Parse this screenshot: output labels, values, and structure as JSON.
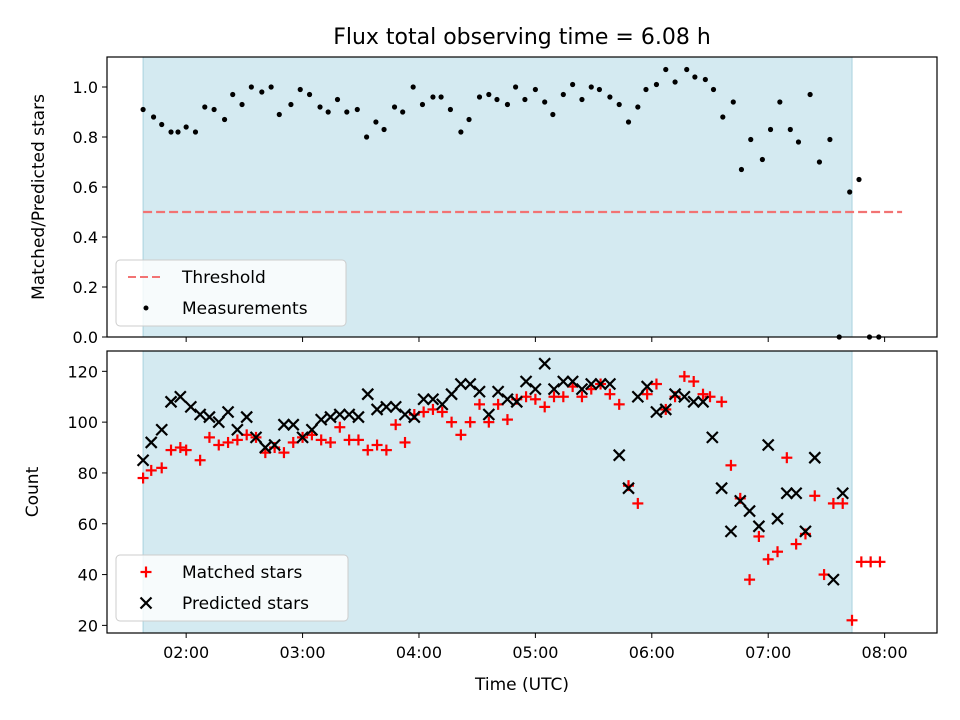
{
  "chart_data": [
    {
      "type": "scatter",
      "title": "Flux total observing time = 6.08 h",
      "xlabel": "",
      "ylabel": "Matched/Predicted stars",
      "ylim": [
        0,
        1.12
      ],
      "yticks": [
        0.0,
        0.2,
        0.4,
        0.6,
        0.8,
        1.0
      ],
      "ytick_labels": [
        "0.0",
        "0.2",
        "0.4",
        "0.6",
        "0.8",
        "1.0"
      ],
      "xlim_hours": [
        1.32,
        8.45
      ],
      "observing_window_hours": [
        1.63,
        7.72
      ],
      "shade_color": "#d4eaf1",
      "legend_position": "lower-left",
      "threshold": {
        "name": "Threshold",
        "value": 0.5,
        "x_range_hours": [
          1.63,
          8.15
        ],
        "color": "#f27373"
      },
      "series": [
        {
          "name": "Measurements",
          "color": "#000000",
          "points": [
            [
              1.63,
              0.91
            ],
            [
              1.72,
              0.88
            ],
            [
              1.79,
              0.85
            ],
            [
              1.87,
              0.82
            ],
            [
              1.93,
              0.82
            ],
            [
              2.0,
              0.84
            ],
            [
              2.08,
              0.82
            ],
            [
              2.16,
              0.92
            ],
            [
              2.24,
              0.91
            ],
            [
              2.33,
              0.87
            ],
            [
              2.4,
              0.97
            ],
            [
              2.48,
              0.93
            ],
            [
              2.56,
              1.0
            ],
            [
              2.65,
              0.98
            ],
            [
              2.73,
              1.0
            ],
            [
              2.8,
              0.89
            ],
            [
              2.9,
              0.93
            ],
            [
              2.98,
              0.99
            ],
            [
              3.06,
              0.97
            ],
            [
              3.15,
              0.92
            ],
            [
              3.22,
              0.9
            ],
            [
              3.3,
              0.95
            ],
            [
              3.38,
              0.9
            ],
            [
              3.47,
              0.91
            ],
            [
              3.55,
              0.8
            ],
            [
              3.63,
              0.86
            ],
            [
              3.7,
              0.83
            ],
            [
              3.79,
              0.92
            ],
            [
              3.86,
              0.9
            ],
            [
              3.95,
              1.0
            ],
            [
              4.03,
              0.93
            ],
            [
              4.12,
              0.96
            ],
            [
              4.19,
              0.96
            ],
            [
              4.27,
              0.91
            ],
            [
              4.36,
              0.82
            ],
            [
              4.43,
              0.87
            ],
            [
              4.52,
              0.96
            ],
            [
              4.6,
              0.97
            ],
            [
              4.67,
              0.95
            ],
            [
              4.76,
              0.93
            ],
            [
              4.83,
              1.0
            ],
            [
              4.91,
              0.95
            ],
            [
              5.0,
              0.99
            ],
            [
              5.08,
              0.94
            ],
            [
              5.15,
              0.89
            ],
            [
              5.24,
              0.97
            ],
            [
              5.32,
              1.01
            ],
            [
              5.4,
              0.95
            ],
            [
              5.48,
              1.0
            ],
            [
              5.55,
              0.99
            ],
            [
              5.64,
              0.96
            ],
            [
              5.72,
              0.93
            ],
            [
              5.8,
              0.86
            ],
            [
              5.88,
              0.92
            ],
            [
              5.95,
              0.99
            ],
            [
              6.04,
              1.01
            ],
            [
              6.12,
              1.07
            ],
            [
              6.2,
              1.02
            ],
            [
              6.3,
              1.07
            ],
            [
              6.37,
              1.04
            ],
            [
              6.46,
              1.03
            ],
            [
              6.53,
              0.99
            ],
            [
              6.61,
              0.88
            ],
            [
              6.7,
              0.94
            ],
            [
              6.77,
              0.67
            ],
            [
              6.85,
              0.79
            ],
            [
              6.95,
              0.71
            ],
            [
              7.02,
              0.83
            ],
            [
              7.1,
              0.94
            ],
            [
              7.19,
              0.83
            ],
            [
              7.26,
              0.78
            ],
            [
              7.36,
              0.97
            ],
            [
              7.44,
              0.7
            ],
            [
              7.53,
              0.79
            ],
            [
              7.61,
              0.0
            ],
            [
              7.7,
              0.58
            ],
            [
              7.78,
              0.63
            ],
            [
              7.87,
              0.0
            ],
            [
              7.95,
              0.0
            ]
          ]
        }
      ]
    },
    {
      "type": "scatter",
      "title": "",
      "xlabel": "Time (UTC)",
      "ylabel": "Count",
      "ylim": [
        17,
        128
      ],
      "yticks": [
        20,
        40,
        60,
        80,
        100,
        120
      ],
      "ytick_labels": [
        "20",
        "40",
        "60",
        "80",
        "100",
        "120"
      ],
      "xlim_hours": [
        1.32,
        8.45
      ],
      "xticks_hours": [
        2,
        3,
        4,
        5,
        6,
        7,
        8
      ],
      "xtick_labels": [
        "02:00",
        "03:00",
        "04:00",
        "05:00",
        "06:00",
        "07:00",
        "08:00"
      ],
      "observing_window_hours": [
        1.63,
        7.72
      ],
      "shade_color": "#d4eaf1",
      "legend_position": "lower-left",
      "series": [
        {
          "name": "Matched stars",
          "marker": "plus",
          "color": "#ff0000",
          "points": [
            [
              1.63,
              78
            ],
            [
              1.7,
              81
            ],
            [
              1.79,
              82
            ],
            [
              1.87,
              89
            ],
            [
              1.95,
              90
            ],
            [
              2.0,
              89
            ],
            [
              2.12,
              85
            ],
            [
              2.2,
              94
            ],
            [
              2.28,
              91
            ],
            [
              2.36,
              92
            ],
            [
              2.44,
              93
            ],
            [
              2.52,
              95
            ],
            [
              2.6,
              94
            ],
            [
              2.68,
              88
            ],
            [
              2.76,
              90
            ],
            [
              2.84,
              88
            ],
            [
              2.92,
              92
            ],
            [
              3.0,
              94
            ],
            [
              3.08,
              95
            ],
            [
              3.16,
              93
            ],
            [
              3.24,
              92
            ],
            [
              3.32,
              98
            ],
            [
              3.4,
              93
            ],
            [
              3.48,
              93
            ],
            [
              3.56,
              89
            ],
            [
              3.64,
              91
            ],
            [
              3.72,
              89
            ],
            [
              3.8,
              99
            ],
            [
              3.88,
              92
            ],
            [
              3.96,
              103
            ],
            [
              4.04,
              104
            ],
            [
              4.12,
              105
            ],
            [
              4.2,
              104
            ],
            [
              4.28,
              100
            ],
            [
              4.36,
              95
            ],
            [
              4.44,
              100
            ],
            [
              4.52,
              107
            ],
            [
              4.6,
              100
            ],
            [
              4.68,
              107
            ],
            [
              4.76,
              101
            ],
            [
              4.84,
              109
            ],
            [
              4.92,
              110
            ],
            [
              5.0,
              109
            ],
            [
              5.08,
              106
            ],
            [
              5.16,
              110
            ],
            [
              5.24,
              110
            ],
            [
              5.32,
              114
            ],
            [
              5.4,
              110
            ],
            [
              5.48,
              113
            ],
            [
              5.56,
              115
            ],
            [
              5.64,
              111
            ],
            [
              5.72,
              107
            ],
            [
              5.8,
              75
            ],
            [
              5.88,
              68
            ],
            [
              5.96,
              111
            ],
            [
              6.04,
              115
            ],
            [
              6.12,
              105
            ],
            [
              6.2,
              110
            ],
            [
              6.28,
              118
            ],
            [
              6.36,
              116
            ],
            [
              6.44,
              111
            ],
            [
              6.5,
              110
            ],
            [
              6.6,
              108
            ],
            [
              6.68,
              83
            ],
            [
              6.76,
              70
            ],
            [
              6.84,
              38
            ],
            [
              6.92,
              55
            ],
            [
              7.0,
              46
            ],
            [
              7.08,
              49
            ],
            [
              7.16,
              86
            ],
            [
              7.24,
              52
            ],
            [
              7.32,
              56
            ],
            [
              7.4,
              71
            ],
            [
              7.48,
              40
            ],
            [
              7.56,
              68
            ],
            [
              7.64,
              68
            ],
            [
              7.72,
              22
            ],
            [
              7.8,
              45
            ],
            [
              7.88,
              45
            ],
            [
              7.96,
              45
            ]
          ]
        },
        {
          "name": "Predicted stars",
          "marker": "x",
          "color": "#000000",
          "points": [
            [
              1.63,
              85
            ],
            [
              1.7,
              92
            ],
            [
              1.79,
              97
            ],
            [
              1.87,
              108
            ],
            [
              1.95,
              110
            ],
            [
              2.04,
              106
            ],
            [
              2.12,
              103
            ],
            [
              2.2,
              102
            ],
            [
              2.28,
              100
            ],
            [
              2.36,
              104
            ],
            [
              2.44,
              97
            ],
            [
              2.52,
              102
            ],
            [
              2.6,
              94
            ],
            [
              2.68,
              90
            ],
            [
              2.76,
              91
            ],
            [
              2.84,
              99
            ],
            [
              2.92,
              99
            ],
            [
              3.0,
              94
            ],
            [
              3.08,
              97
            ],
            [
              3.16,
              101
            ],
            [
              3.24,
              102
            ],
            [
              3.32,
              103
            ],
            [
              3.4,
              103
            ],
            [
              3.48,
              102
            ],
            [
              3.56,
              111
            ],
            [
              3.64,
              105
            ],
            [
              3.72,
              106
            ],
            [
              3.8,
              106
            ],
            [
              3.88,
              103
            ],
            [
              3.96,
              102
            ],
            [
              4.04,
              109
            ],
            [
              4.12,
              109
            ],
            [
              4.2,
              107
            ],
            [
              4.28,
              111
            ],
            [
              4.36,
              115
            ],
            [
              4.44,
              115
            ],
            [
              4.52,
              112
            ],
            [
              4.6,
              103
            ],
            [
              4.68,
              112
            ],
            [
              4.76,
              109
            ],
            [
              4.84,
              108
            ],
            [
              4.92,
              116
            ],
            [
              5.0,
              113
            ],
            [
              5.08,
              123
            ],
            [
              5.16,
              113
            ],
            [
              5.24,
              116
            ],
            [
              5.32,
              116
            ],
            [
              5.4,
              113
            ],
            [
              5.48,
              115
            ],
            [
              5.56,
              115
            ],
            [
              5.64,
              115
            ],
            [
              5.72,
              87
            ],
            [
              5.8,
              74
            ],
            [
              5.88,
              110
            ],
            [
              5.96,
              114
            ],
            [
              6.04,
              104
            ],
            [
              6.12,
              105
            ],
            [
              6.2,
              111
            ],
            [
              6.28,
              110
            ],
            [
              6.36,
              108
            ],
            [
              6.44,
              108
            ],
            [
              6.52,
              94
            ],
            [
              6.6,
              74
            ],
            [
              6.68,
              57
            ],
            [
              6.76,
              69
            ],
            [
              6.84,
              65
            ],
            [
              6.92,
              59
            ],
            [
              7.0,
              91
            ],
            [
              7.08,
              62
            ],
            [
              7.16,
              72
            ],
            [
              7.24,
              72
            ],
            [
              7.32,
              57
            ],
            [
              7.4,
              86
            ],
            [
              7.56,
              38
            ],
            [
              7.64,
              72
            ]
          ]
        }
      ]
    }
  ]
}
